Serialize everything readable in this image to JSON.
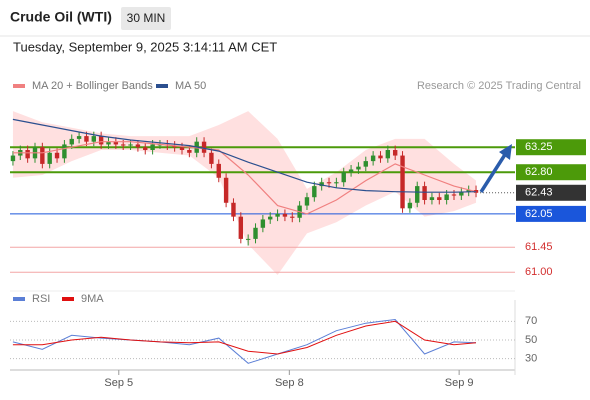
{
  "header": {
    "title": "Crude Oil (WTI)",
    "interval": "30 MIN",
    "timestamp": "Tuesday, September 9, 2025 3:14:11 AM CET"
  },
  "chart_data": [
    {
      "type": "candlestick",
      "credit": "Research © 2025 Trading Central",
      "up_color": "#2f8f2f",
      "down_color": "#c62828",
      "xlim": [
        -0.4,
        68.3
      ],
      "ylim": [
        60.77,
        64.1
      ],
      "open": [
        63.0,
        63.1,
        63.2,
        63.05,
        63.25,
        62.95,
        63.15,
        63.05,
        63.3,
        63.4,
        63.45,
        63.35,
        63.45,
        63.3,
        63.35,
        63.3,
        63.28,
        63.3,
        63.25,
        63.2,
        63.3,
        63.3,
        63.28,
        63.25,
        63.2,
        63.15,
        63.35,
        63.15,
        62.95,
        62.7,
        62.25,
        62.0,
        61.6,
        61.6,
        61.8,
        61.95,
        62.0,
        62.05,
        62.0,
        61.98,
        62.2,
        62.35,
        62.55,
        62.62,
        62.6,
        62.62,
        62.8,
        62.85,
        62.9,
        63.0,
        63.1,
        63.05,
        63.2,
        63.1,
        62.15,
        62.25,
        62.55,
        62.3,
        62.35,
        62.3,
        62.4,
        62.38,
        62.45,
        62.48
      ],
      "high": [
        63.18,
        63.28,
        63.28,
        63.33,
        63.33,
        63.23,
        63.23,
        63.38,
        63.48,
        63.53,
        63.53,
        63.53,
        63.53,
        63.43,
        63.43,
        63.38,
        63.38,
        63.38,
        63.33,
        63.38,
        63.38,
        63.38,
        63.36,
        63.33,
        63.28,
        63.43,
        63.43,
        63.23,
        63.03,
        62.78,
        62.33,
        62.08,
        61.68,
        61.88,
        62.03,
        62.08,
        62.13,
        62.13,
        62.08,
        62.28,
        62.43,
        62.63,
        62.7,
        62.7,
        62.7,
        62.88,
        62.93,
        62.98,
        63.08,
        63.18,
        63.18,
        63.28,
        63.28,
        63.18,
        62.33,
        62.63,
        62.63,
        62.43,
        62.43,
        62.48,
        62.48,
        62.53,
        62.56,
        62.56
      ],
      "low": [
        62.92,
        63.02,
        62.97,
        62.97,
        62.87,
        62.87,
        62.97,
        62.97,
        63.22,
        63.32,
        63.27,
        63.27,
        63.22,
        63.22,
        63.22,
        63.2,
        63.2,
        63.17,
        63.12,
        63.12,
        63.22,
        63.2,
        63.17,
        63.12,
        63.07,
        63.07,
        63.07,
        62.87,
        62.62,
        62.17,
        61.92,
        61.52,
        61.48,
        61.52,
        61.72,
        61.87,
        61.92,
        61.92,
        61.9,
        61.9,
        62.12,
        62.27,
        62.47,
        62.52,
        62.52,
        62.54,
        62.72,
        62.77,
        62.82,
        62.92,
        62.97,
        62.97,
        63.02,
        62.07,
        62.07,
        62.17,
        62.22,
        62.22,
        62.22,
        62.22,
        62.3,
        62.3,
        62.37,
        62.35
      ],
      "close": [
        63.1,
        63.2,
        63.05,
        63.25,
        62.95,
        63.15,
        63.05,
        63.3,
        63.4,
        63.45,
        63.35,
        63.45,
        63.3,
        63.35,
        63.3,
        63.28,
        63.3,
        63.25,
        63.2,
        63.3,
        63.3,
        63.28,
        63.25,
        63.2,
        63.15,
        63.35,
        63.15,
        62.95,
        62.7,
        62.25,
        62.0,
        61.6,
        61.6,
        61.8,
        61.95,
        62.0,
        62.05,
        62.0,
        61.98,
        62.2,
        62.35,
        62.55,
        62.62,
        62.6,
        62.62,
        62.8,
        62.85,
        62.9,
        63.0,
        63.1,
        63.05,
        63.2,
        63.1,
        62.15,
        62.25,
        62.55,
        62.3,
        62.35,
        62.3,
        62.4,
        62.38,
        62.45,
        62.48,
        62.43
      ],
      "series": [
        {
          "name": "MA 20 + Bollinger Bands",
          "color": "#f08080",
          "band_color": "#ffd6d6",
          "x": [
            0,
            4,
            8,
            12,
            16,
            20,
            24,
            28,
            32,
            36,
            40,
            44,
            48,
            52,
            56,
            60,
            63
          ],
          "values": [
            63.15,
            63.15,
            63.25,
            63.35,
            63.35,
            63.3,
            63.25,
            63.2,
            62.75,
            62.2,
            62.05,
            62.3,
            62.65,
            62.95,
            62.75,
            62.55,
            62.45
          ],
          "upper": [
            63.9,
            63.7,
            63.6,
            63.5,
            63.45,
            63.45,
            63.45,
            63.65,
            63.9,
            63.4,
            62.5,
            62.8,
            63.2,
            63.4,
            63.4,
            62.95,
            62.65
          ],
          "lower": [
            62.7,
            62.75,
            63.0,
            63.2,
            63.2,
            63.15,
            63.1,
            62.7,
            61.5,
            60.95,
            61.7,
            61.9,
            62.2,
            62.45,
            62.0,
            62.1,
            62.25
          ]
        },
        {
          "name": "MA 50",
          "color": "#2b4f8f",
          "x": [
            0,
            4,
            8,
            12,
            16,
            20,
            24,
            28,
            32,
            36,
            40,
            44,
            48,
            52,
            56,
            60,
            63
          ],
          "values": [
            63.75,
            63.65,
            63.55,
            63.45,
            63.38,
            63.33,
            63.28,
            63.18,
            62.98,
            62.8,
            62.62,
            62.52,
            62.47,
            62.45,
            62.44,
            62.44,
            62.45
          ]
        }
      ],
      "levels": [
        {
          "value": 63.25,
          "label": "63.25",
          "color": "#4c9a0a",
          "style": "box"
        },
        {
          "value": 62.8,
          "label": "62.80",
          "color": "#4c9a0a",
          "style": "box"
        },
        {
          "value": 62.43,
          "label": "62.43",
          "color": "#333333",
          "style": "current"
        },
        {
          "value": 62.05,
          "label": "62.05",
          "color": "#1a56db",
          "style": "box"
        },
        {
          "value": 61.45,
          "label": "61.45",
          "color": "#d32f2f",
          "style": "text"
        },
        {
          "value": 61.0,
          "label": "61.00",
          "color": "#d32f2f",
          "style": "text"
        }
      ]
    },
    {
      "type": "line",
      "xlim": [
        -0.4,
        68.3
      ],
      "ylim": [
        20,
        80
      ],
      "yticks": [
        70,
        50,
        30
      ],
      "xticks": [
        {
          "value": 14.4,
          "label": "Sep 5"
        },
        {
          "value": 37.6,
          "label": "Sep 8"
        },
        {
          "value": 60.7,
          "label": "Sep 9"
        }
      ],
      "series": [
        {
          "name": "RSI",
          "color": "#5b7fd6",
          "x": [
            0,
            4,
            8,
            12,
            16,
            20,
            24,
            28,
            32,
            36,
            40,
            44,
            48,
            52,
            56,
            60,
            63
          ],
          "values": [
            48,
            40,
            55,
            52,
            50,
            48,
            45,
            52,
            25,
            35,
            45,
            60,
            68,
            72,
            35,
            48,
            47
          ]
        },
        {
          "name": "9MA",
          "color": "#e01010",
          "x": [
            0,
            4,
            8,
            12,
            16,
            20,
            24,
            28,
            32,
            36,
            40,
            44,
            48,
            52,
            56,
            60,
            63
          ],
          "values": [
            45,
            45,
            50,
            53,
            50,
            48,
            47,
            48,
            38,
            35,
            42,
            55,
            65,
            70,
            50,
            45,
            47
          ]
        }
      ]
    }
  ]
}
